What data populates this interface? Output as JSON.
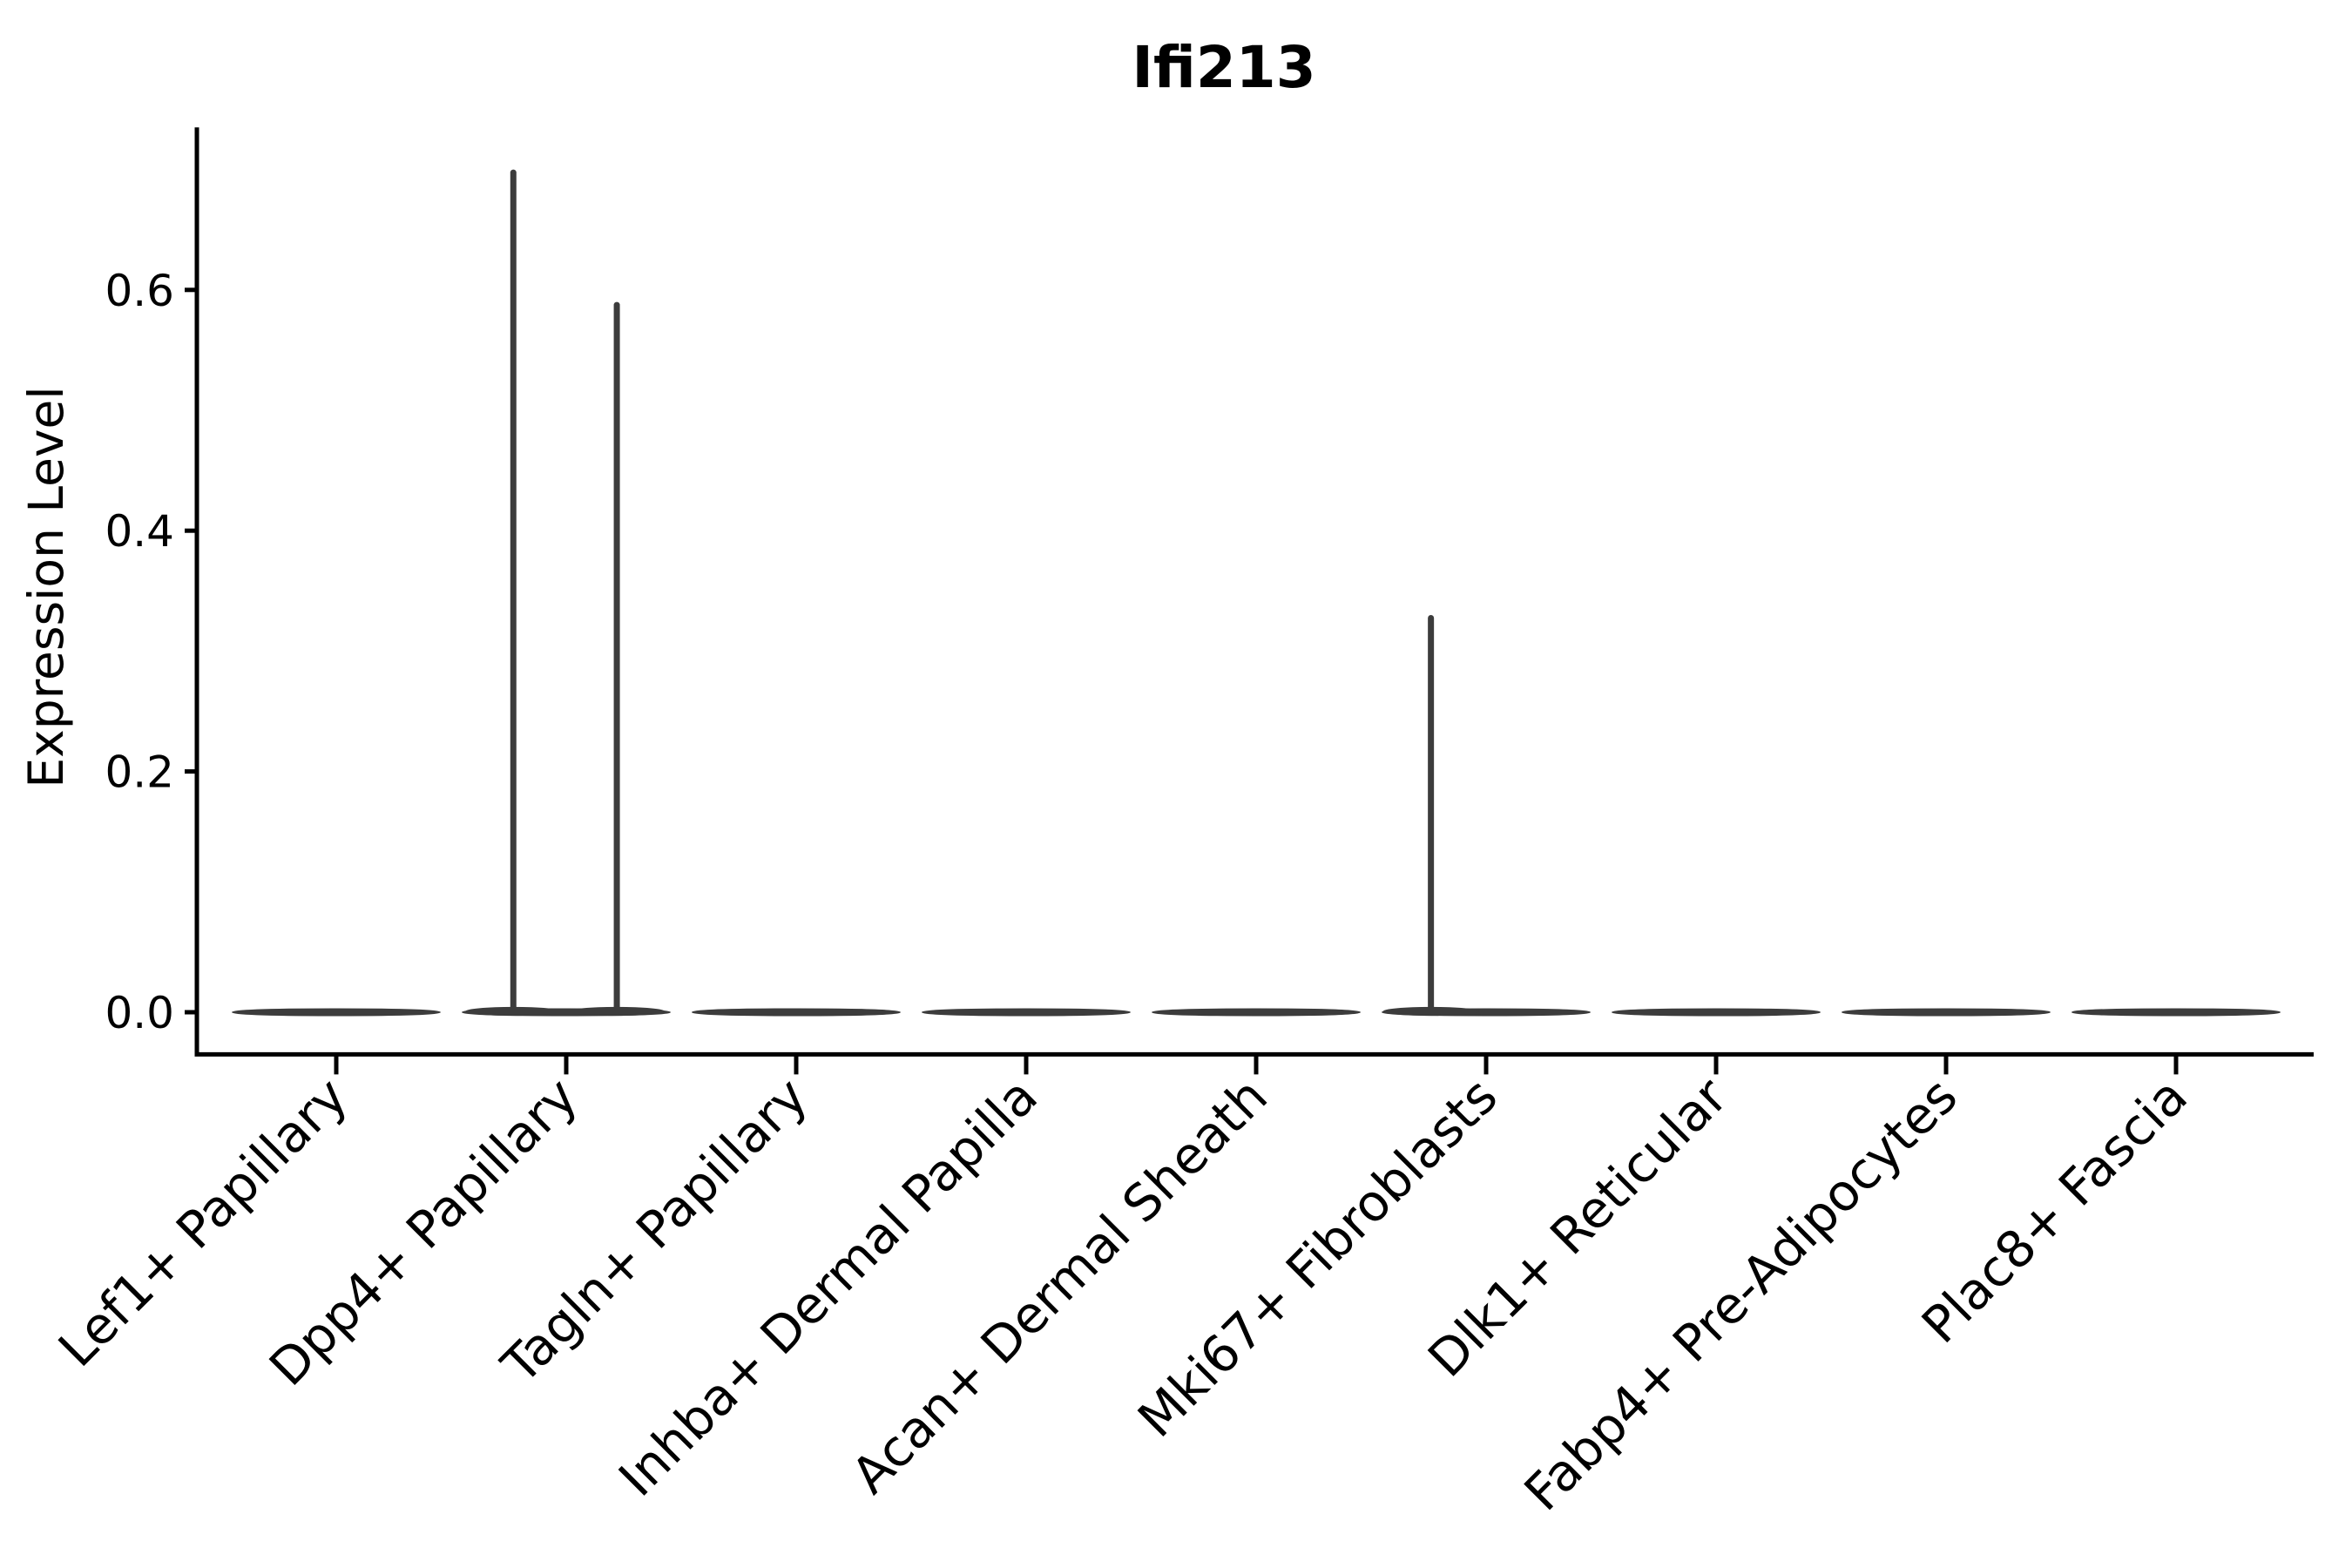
{
  "chart_data": {
    "type": "violin",
    "title": "Ifi213",
    "ylabel": "Expression Level",
    "xlabel": "",
    "yticks": [
      "0.0",
      "0.2",
      "0.4",
      "0.6"
    ],
    "ylim": [
      -0.035,
      0.735
    ],
    "grid": false,
    "legend": "none",
    "categories": [
      "Lef1+ Papillary",
      "Dpp4+ Papillary",
      "Tagln+ Papillary",
      "Inhba+ Dermal Papilla",
      "Acan+ Dermal Sheath",
      "Mki67+ Fibroblasts",
      "Dlk1+ Reticular",
      "Fabp4+ Pre-Adipocytes",
      "Plac8+ Fascia"
    ],
    "violins": [
      {
        "category": "Lef1+ Papillary",
        "baseline": 0.0,
        "max": 0.0,
        "spikes": []
      },
      {
        "category": "Dpp4+ Papillary",
        "baseline": 0.0,
        "max": 0.7,
        "spikes": [
          {
            "offset": -0.23,
            "value": 0.7
          },
          {
            "offset": 0.22,
            "value": 0.59
          }
        ]
      },
      {
        "category": "Tagln+ Papillary",
        "baseline": 0.0,
        "max": 0.0,
        "spikes": []
      },
      {
        "category": "Inhba+ Dermal Papilla",
        "baseline": 0.0,
        "max": 0.0,
        "spikes": []
      },
      {
        "category": "Acan+ Dermal Sheath",
        "baseline": 0.0,
        "max": 0.0,
        "spikes": []
      },
      {
        "category": "Mki67+ Fibroblasts",
        "baseline": 0.0,
        "max": 0.33,
        "spikes": [
          {
            "offset": -0.24,
            "value": 0.33
          }
        ]
      },
      {
        "category": "Dlk1+ Reticular",
        "baseline": 0.0,
        "max": 0.0,
        "spikes": []
      },
      {
        "category": "Fabp4+ Pre-Adipocytes",
        "baseline": 0.0,
        "max": 0.0,
        "spikes": []
      },
      {
        "category": "Plac8+ Fascia",
        "baseline": 0.0,
        "max": 0.0,
        "spikes": []
      }
    ],
    "colors": {
      "violin": "#3c3c3c",
      "axis": "#000000",
      "text": "#000000",
      "background": "#ffffff"
    }
  }
}
